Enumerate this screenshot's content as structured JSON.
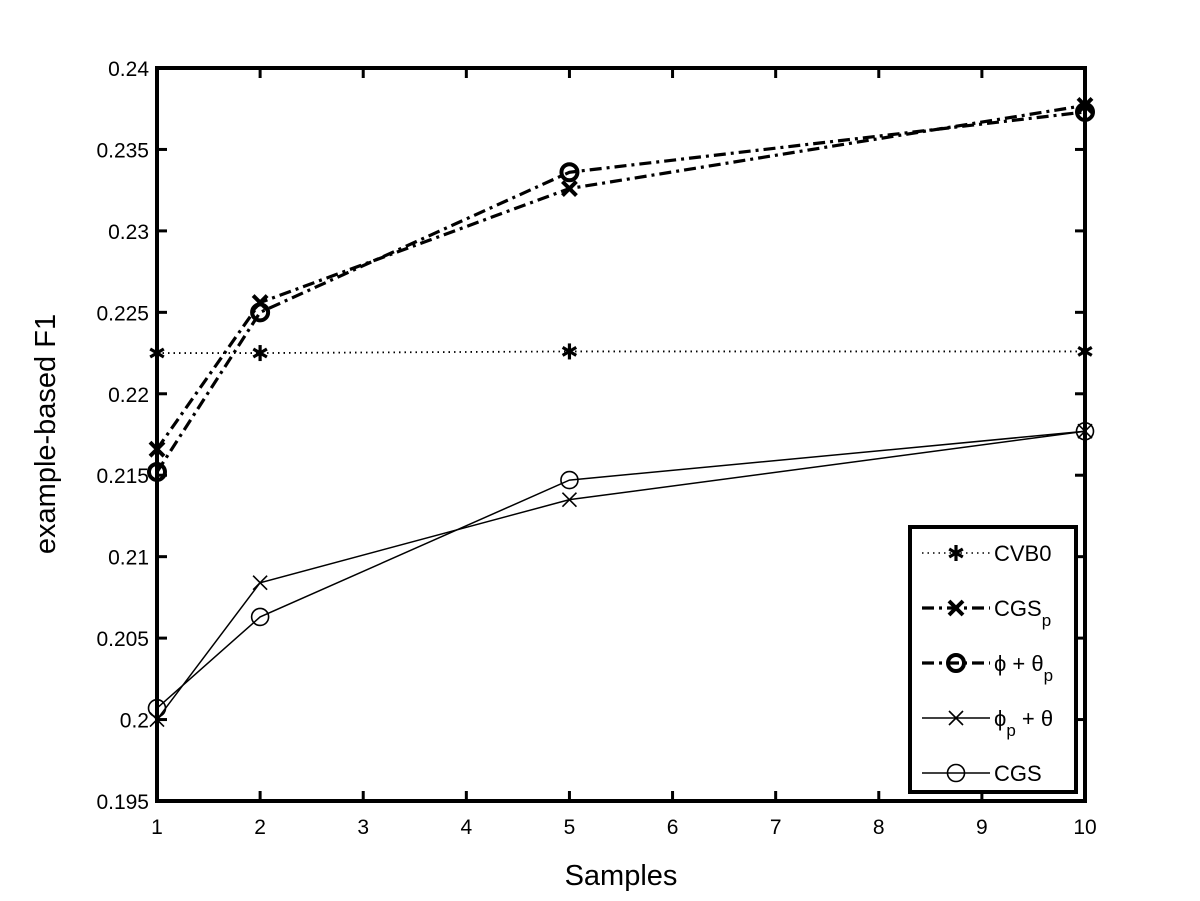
{
  "chart_data": {
    "type": "line",
    "title": "",
    "xlabel": "Samples",
    "ylabel": "example-based F1",
    "xlim": [
      1,
      10
    ],
    "ylim": [
      0.195,
      0.24
    ],
    "xticks": [
      "1",
      "2",
      "3",
      "4",
      "5",
      "6",
      "7",
      "8",
      "9",
      "10"
    ],
    "yticks": [
      "0.195",
      "0.2",
      "0.205",
      "0.21",
      "0.215",
      "0.22",
      "0.225",
      "0.23",
      "0.235",
      "0.24"
    ],
    "grid": false,
    "legend_position": "bottom-right",
    "x": [
      1,
      2,
      5,
      10
    ],
    "series": [
      {
        "name": "CVB0",
        "legend_main": "CVB0",
        "legend_sub": "",
        "legend_tail": "",
        "style": "dotted",
        "marker": "asterisk",
        "bold": false,
        "color": "#000000",
        "values": [
          0.2225,
          0.2225,
          0.2226,
          0.2226
        ]
      },
      {
        "name": "CGSp",
        "legend_main": "CGS",
        "legend_sub": "p",
        "legend_tail": "",
        "style": "dashdot",
        "marker": "x",
        "bold": true,
        "color": "#000000",
        "values": [
          0.2166,
          0.2256,
          0.2326,
          0.2377
        ]
      },
      {
        "name": "φ + θp",
        "legend_main": "ϕ + θ",
        "legend_sub": "p",
        "legend_tail": "",
        "style": "dashdot",
        "marker": "circle",
        "bold": true,
        "color": "#000000",
        "values": [
          0.2152,
          0.225,
          0.2336,
          0.2373
        ]
      },
      {
        "name": "φp + θ",
        "legend_main": "ϕ",
        "legend_sub": "p",
        "legend_tail": " + θ",
        "style": "solid",
        "marker": "x",
        "bold": false,
        "color": "#000000",
        "values": [
          0.2,
          0.2084,
          0.2135,
          0.2177
        ]
      },
      {
        "name": "CGS",
        "legend_main": "CGS",
        "legend_sub": "",
        "legend_tail": "",
        "style": "solid",
        "marker": "circle",
        "bold": false,
        "color": "#000000",
        "values": [
          0.2007,
          0.2063,
          0.2147,
          0.2177
        ]
      }
    ]
  }
}
